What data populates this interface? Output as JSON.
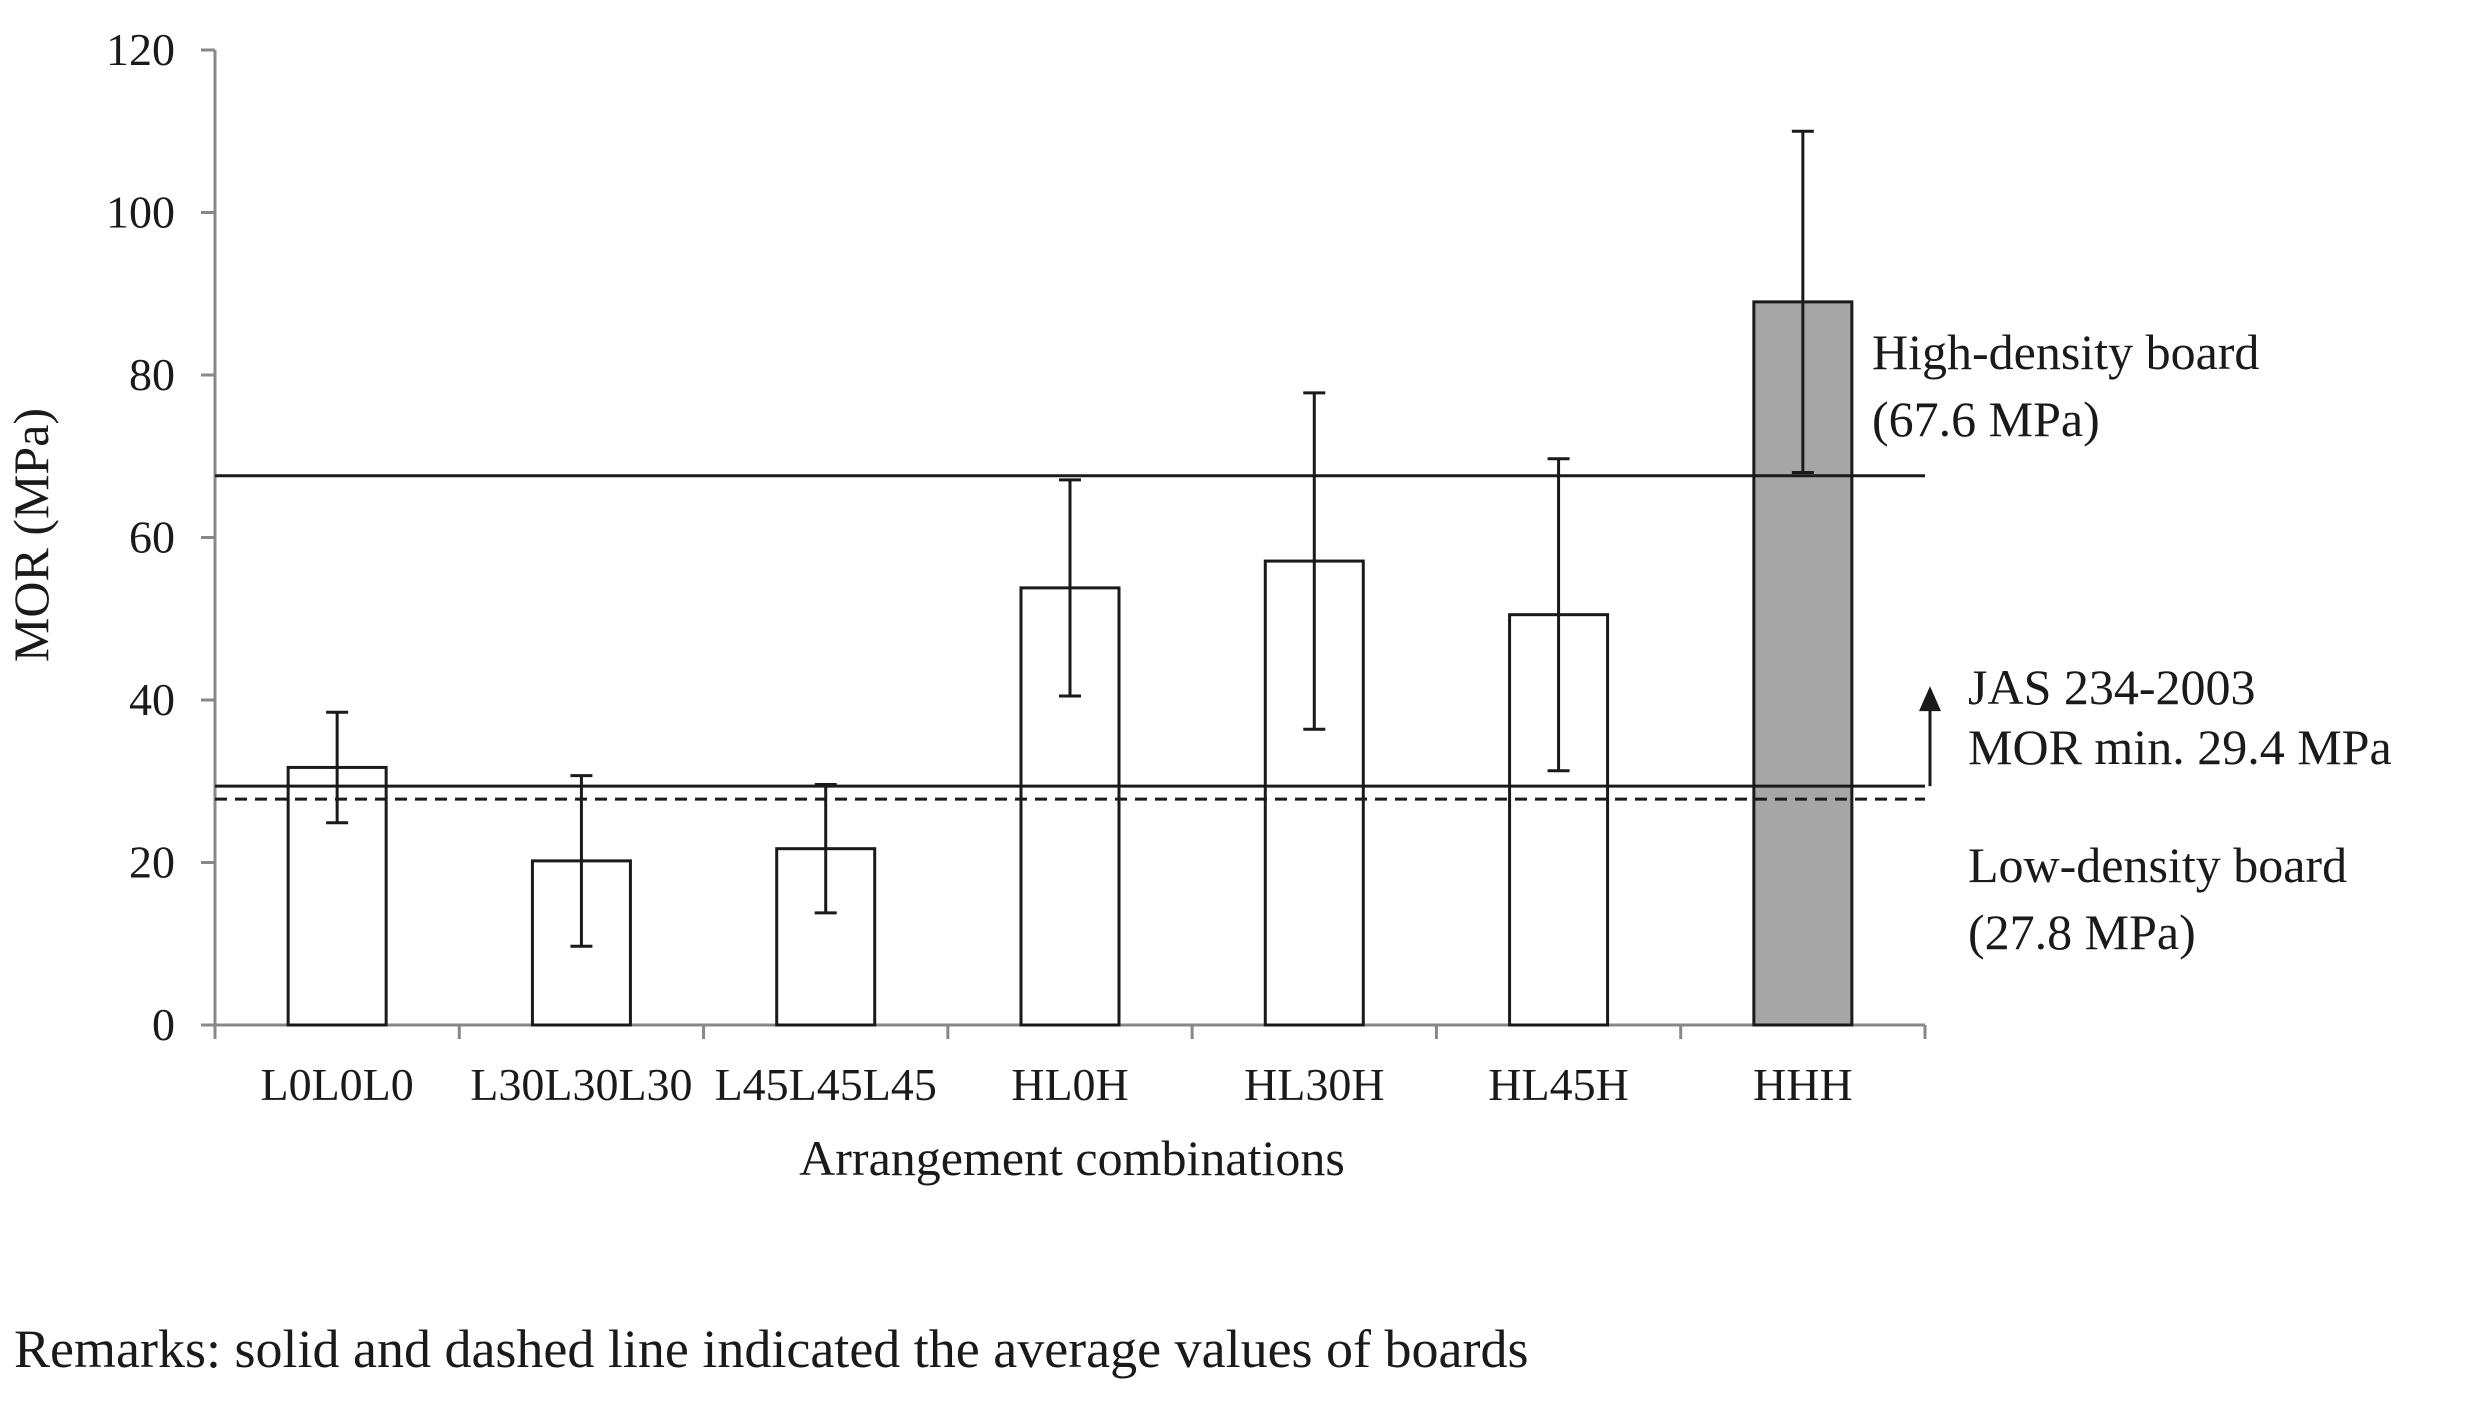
{
  "chart_data": {
    "type": "bar",
    "categories": [
      "L0L0L0",
      "L30L30L30",
      "L45L45L45",
      "HL0H",
      "HL30H",
      "HL45H",
      "HHH"
    ],
    "values": [
      31.7,
      20.2,
      21.7,
      53.8,
      57.1,
      50.5,
      89.0
    ],
    "error_low": [
      24.9,
      9.7,
      13.8,
      40.5,
      36.4,
      31.3,
      68.0
    ],
    "error_high": [
      38.5,
      30.7,
      29.6,
      67.1,
      77.8,
      69.7,
      110.0
    ],
    "highlighted": [
      false,
      false,
      false,
      false,
      false,
      false,
      true
    ],
    "bar_color": "#ffffff",
    "highlight_color": "#a6a6a6",
    "xlabel": "Arrangement combinations",
    "ylabel": "MOR (MPa)",
    "ylim": [
      0,
      120
    ],
    "yticks": [
      0,
      20,
      40,
      60,
      80,
      100,
      120
    ],
    "grid": false,
    "reference_lines": [
      {
        "value": 67.6,
        "style": "solid",
        "label_lines": [
          "High-density board",
          "(67.6 MPa)"
        ]
      },
      {
        "value": 29.4,
        "style": "solid",
        "label_lines": [
          "JAS 234-2003",
          "MOR min. 29.4 MPa"
        ]
      },
      {
        "value": 27.8,
        "style": "dashed",
        "label_lines": [
          "Low-density board",
          "(27.8 MPa)"
        ]
      }
    ]
  },
  "remarks": "Remarks: solid and dashed line indicated the average values of boards"
}
